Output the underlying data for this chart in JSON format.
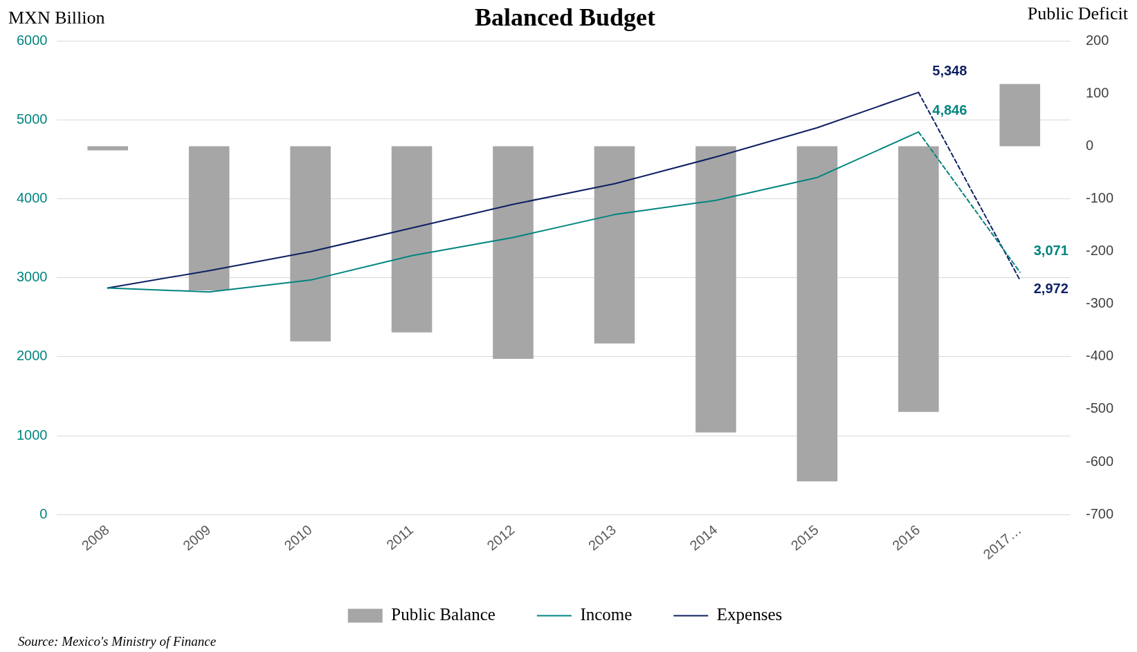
{
  "chart_data": {
    "type": "bar",
    "title": "Balanced Budget",
    "ylabel": "MXN Billion",
    "y2label": "Public Deficit",
    "categories": [
      "2008",
      "2009",
      "2010",
      "2011",
      "2012",
      "2013",
      "2014",
      "2015",
      "2016",
      "2017…"
    ],
    "series": [
      {
        "name": "Public Balance",
        "axis": "y2",
        "color": "#a6a6a6",
        "values": [
          -8,
          -274,
          -371,
          -354,
          -404,
          -375,
          -544,
          -637,
          -505,
          118
        ]
      },
      {
        "name": "Income",
        "type": "line",
        "color": "#00847f",
        "values": [
          2870,
          2820,
          2970,
          3280,
          3510,
          3800,
          3980,
          4270,
          4846,
          null
        ]
      },
      {
        "name": "Expenses",
        "type": "line",
        "color": "#0d1f63",
        "values": [
          2870,
          3090,
          3330,
          3630,
          3930,
          4190,
          4530,
          4900,
          5348,
          null
        ]
      },
      {
        "type": "line",
        "line_style": "dashed",
        "color": "#00847f",
        "values": [
          null,
          null,
          null,
          null,
          null,
          null,
          null,
          null,
          4846,
          3071
        ],
        "value_labels": [
          null,
          null,
          null,
          null,
          null,
          null,
          null,
          null,
          "4,846",
          "3,071"
        ]
      },
      {
        "type": "line",
        "line_style": "dashed",
        "color": "#0d1f63",
        "values": [
          null,
          null,
          null,
          null,
          null,
          null,
          null,
          null,
          5348,
          2972
        ],
        "value_labels": [
          null,
          null,
          null,
          null,
          null,
          null,
          null,
          null,
          "5,348",
          "2,972"
        ]
      }
    ],
    "ylim": [
      0,
      6000
    ],
    "yticks": [
      0,
      1000,
      2000,
      3000,
      4000,
      5000,
      6000
    ],
    "y2lim": [
      -700,
      200
    ],
    "y2ticks": [
      -700,
      -600,
      -500,
      -400,
      -300,
      -200,
      -100,
      0,
      100,
      200
    ],
    "grid": "y",
    "legend": "bottom",
    "marker": "none",
    "annotations": [
      "Source: Mexico's Ministry of Finance"
    ]
  }
}
